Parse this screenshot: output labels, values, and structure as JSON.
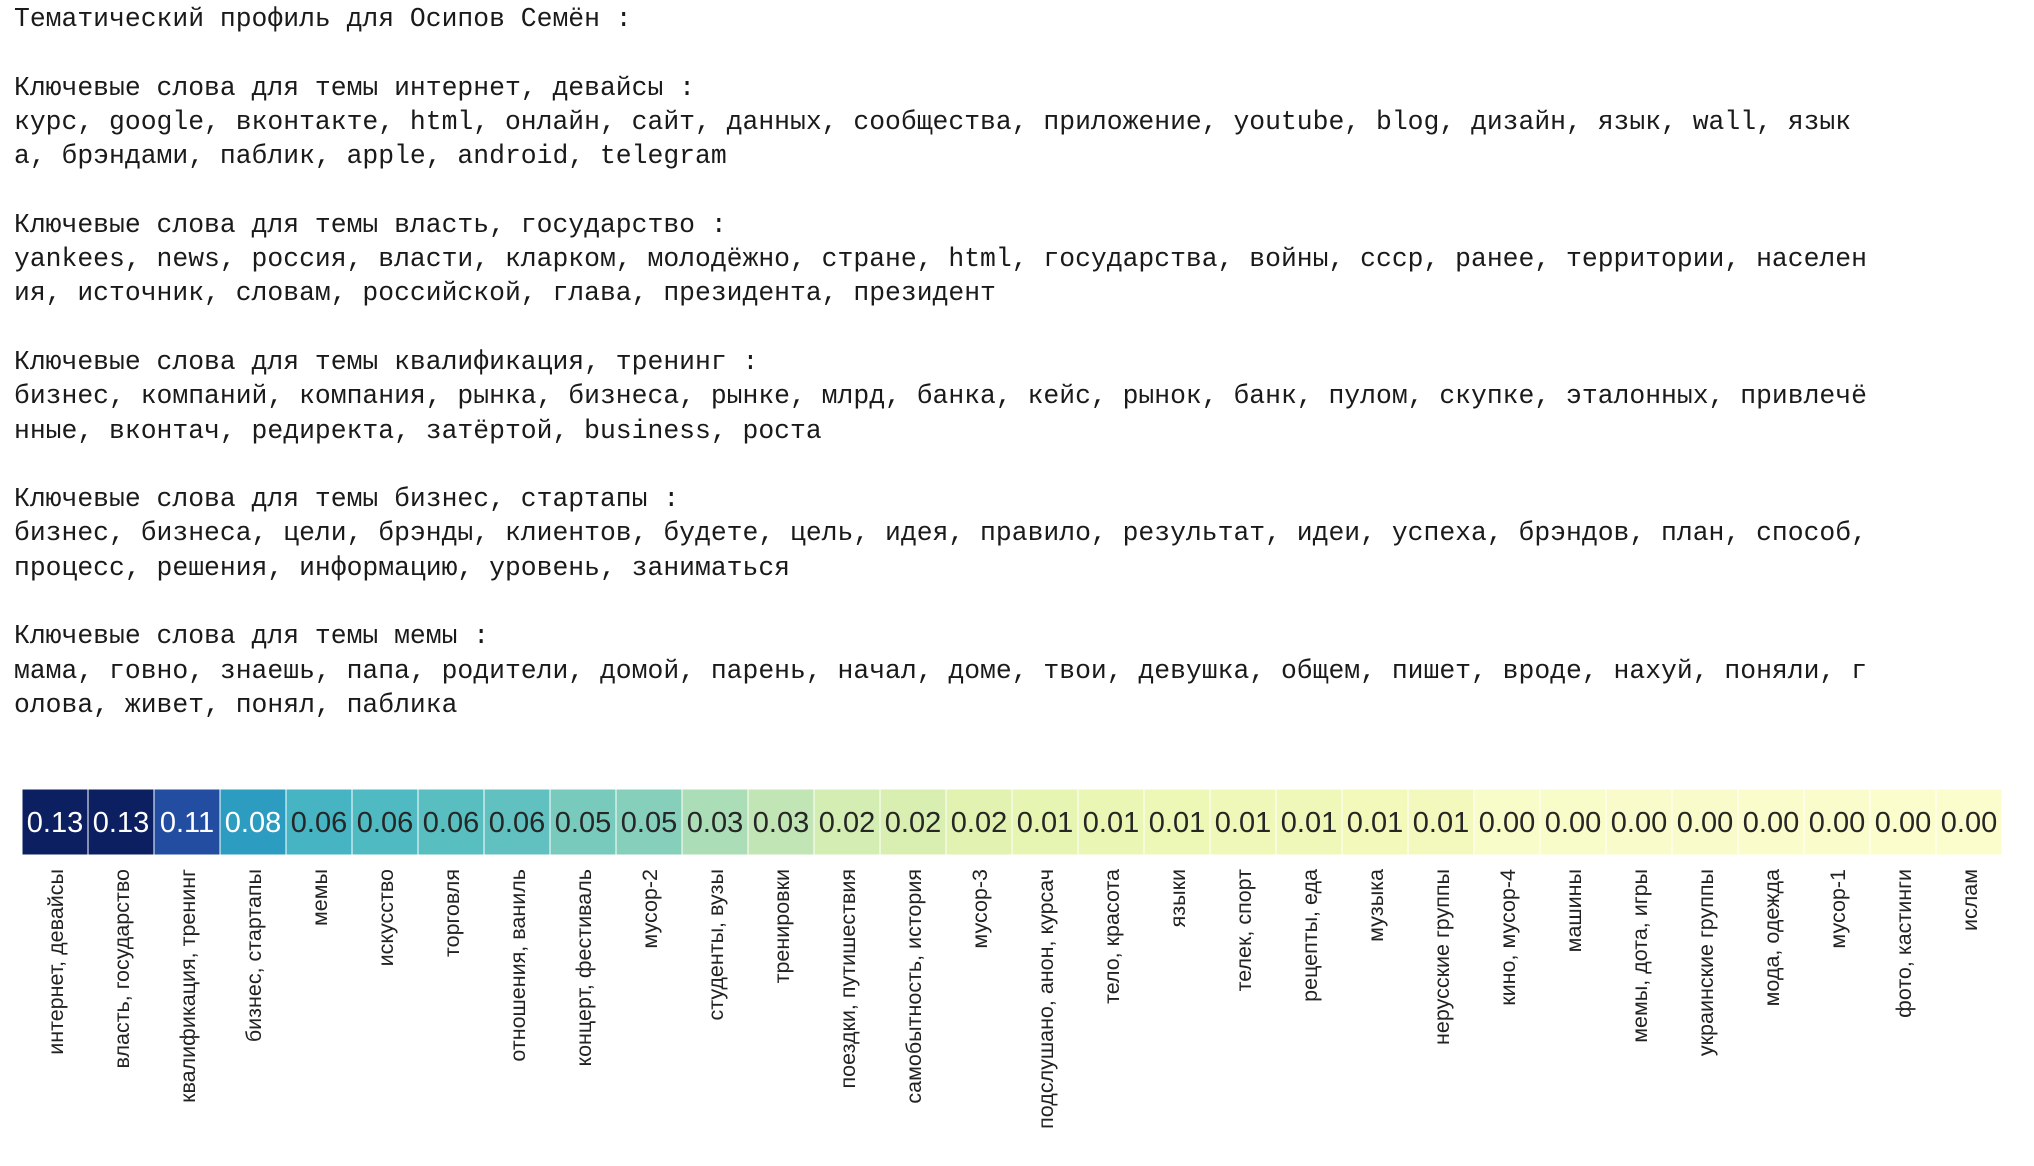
{
  "profile": {
    "title": "Тематический профиль для Осипов Семён :",
    "topics": [
      {
        "heading": "Ключевые слова для темы интернет, девайсы :",
        "lines": [
          "курс, google, вконтакте, html, онлайн, сайт, данных, сообщества, приложение, youtube, blog, дизайн, язык, wall, язык",
          "а, брэндами, паблик, apple, android, telegram"
        ]
      },
      {
        "heading": "Ключевые слова для темы власть, государство :",
        "lines": [
          "yankees, news, россия, власти, кларком, молодёжно, стране, html, государства, войны, ссср, ранее, территории, населен",
          "ия, источник, словам, российской, глава, президента, президент"
        ]
      },
      {
        "heading": "Ключевые слова для темы квалификация, тренинг :",
        "lines": [
          "бизнес, компаний, компания, рынка, бизнеса, рынке, млрд, банка, кейс, рынок, банк, пулом, скупке, эталонных, привлечё",
          "нные, вконтач, редиректа, затёртой, business, роста"
        ]
      },
      {
        "heading": "Ключевые слова для темы бизнес, стартапы :",
        "lines": [
          "бизнес, бизнеса, цели, брэнды, клиентов, будете, цель, идея, правило, результат, идеи, успеха, брэндов, план, способ,",
          "процесс, решения, информацию, уровень, заниматься"
        ]
      },
      {
        "heading": "Ключевые слова для темы мемы :",
        "lines": [
          "мама, говно, знаешь, папа, родители, домой, парень, начал, доме, твои, девушка, общем, пишет, вроде, нахуй, поняли, г",
          "олова, живет, понял, паблика"
        ]
      }
    ]
  },
  "chart_data": {
    "type": "heatmap",
    "colormap": "YlGnBu",
    "vmin": 0.0,
    "vmax": 0.13,
    "categories": [
      "интернет, девайсы",
      "власть, государство",
      "квалификация, тренинг",
      "бизнес, стартапы",
      "мемы",
      "искусство",
      "торговля",
      "отношения, ваниль",
      "концерт, фестиваль",
      "мусор-2",
      "студенты, вузы",
      "тренировки",
      "поездки, путишествия",
      "самобытность, история",
      "мусор-3",
      "подслушано, анон, курсач",
      "тело, красота",
      "языки",
      "телек, спорт",
      "рецепты, еда",
      "музыка",
      "нерусские группы",
      "кино, мусор-4",
      "машины",
      "мемы, дота, игры",
      "украинские группы",
      "мода, одежда",
      "мусор-1",
      "фото, кастинги",
      "ислам"
    ],
    "values": [
      0.13,
      0.13,
      0.11,
      0.08,
      0.06,
      0.06,
      0.06,
      0.06,
      0.05,
      0.05,
      0.03,
      0.03,
      0.02,
      0.02,
      0.02,
      0.01,
      0.01,
      0.01,
      0.01,
      0.01,
      0.01,
      0.01,
      0.0,
      0.0,
      0.0,
      0.0,
      0.0,
      0.0,
      0.0,
      0.0
    ],
    "value_labels": [
      "0.13",
      "0.13",
      "0.11",
      "0.08",
      "0.06",
      "0.06",
      "0.06",
      "0.06",
      "0.05",
      "0.05",
      "0.03",
      "0.03",
      "0.02",
      "0.02",
      "0.02",
      "0.01",
      "0.01",
      "0.01",
      "0.01",
      "0.01",
      "0.01",
      "0.01",
      "0.00",
      "0.00",
      "0.00",
      "0.00",
      "0.00",
      "0.00",
      "0.00",
      "0.00"
    ],
    "cell_colors": [
      "#0c2061",
      "#0c2061",
      "#224da0",
      "#2c9dc1",
      "#46b4c3",
      "#4fbac1",
      "#58bec0",
      "#61c0c0",
      "#78cabc",
      "#86cfbb",
      "#abddb6",
      "#c1e5b4",
      "#d3edb3",
      "#d9efb2",
      "#e1f2b1",
      "#e7f5b2",
      "#eaf6b4",
      "#edf7b6",
      "#eff8b8",
      "#f0f8b9",
      "#f2f9bb",
      "#f3f9bc",
      "#f8fcc8",
      "#f8fcc8",
      "#f9fcca",
      "#f9fcca",
      "#fafccb",
      "#fafccb",
      "#fbfdcd",
      "#fbfdcd"
    ],
    "text_colors": [
      "#ffffff",
      "#ffffff",
      "#ffffff",
      "#ffffff",
      "#262626",
      "#262626",
      "#262626",
      "#262626",
      "#262626",
      "#262626",
      "#262626",
      "#262626",
      "#262626",
      "#262626",
      "#262626",
      "#262626",
      "#262626",
      "#262626",
      "#262626",
      "#262626",
      "#262626",
      "#262626",
      "#262626",
      "#262626",
      "#262626",
      "#262626",
      "#262626",
      "#262626",
      "#262626",
      "#262626"
    ]
  }
}
